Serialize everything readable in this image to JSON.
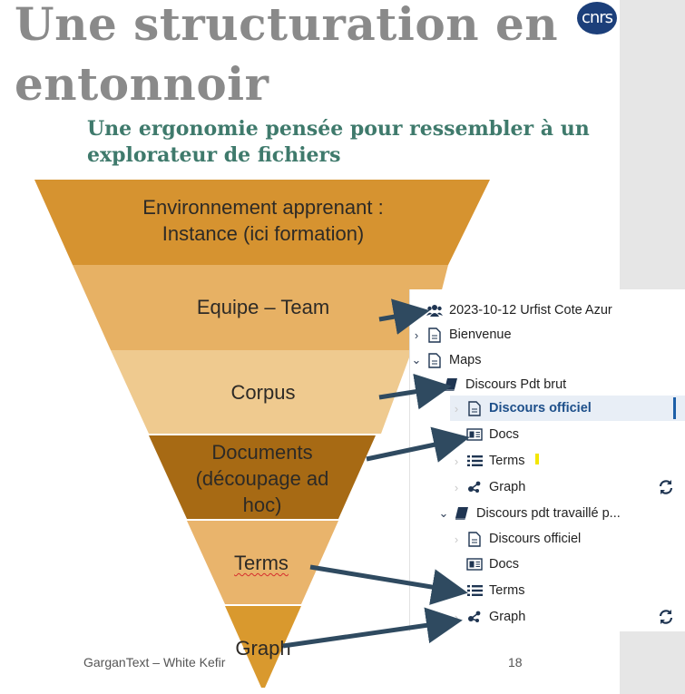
{
  "slide": {
    "title": "Une structuration en entonnoir",
    "subtitle": "Une ergonomie pensée pour ressembler à un explorateur de fichiers",
    "logo_text": "cnrs",
    "footer_left": "GarganText – White Kefir",
    "page_number": "18"
  },
  "funnel": {
    "levels": [
      {
        "label": "Environnement apprenant : Instance (ici formation)",
        "color": "#d69330"
      },
      {
        "label": "Equipe – Team",
        "color": "#e7b164"
      },
      {
        "label": "Corpus",
        "color": "#efca8f"
      },
      {
        "label": "Documents (découpage ad hoc)",
        "color": "#a76a14"
      },
      {
        "label": "Terms",
        "color": "#e9b46c"
      },
      {
        "label": "Graph",
        "color": "#d9992e"
      }
    ]
  },
  "tree": {
    "items": [
      {
        "label": "2023-10-12 Urfist Cote Azur",
        "icon": "users-icon"
      },
      {
        "label": "Bienvenue",
        "icon": "document-icon"
      },
      {
        "label": "Maps",
        "icon": "document-icon"
      },
      {
        "label": "Discours Pdt brut",
        "icon": "book-icon"
      },
      {
        "label": "Discours officiel",
        "icon": "document-icon",
        "selected": true
      },
      {
        "label": "Docs",
        "icon": "docs-grid-icon"
      },
      {
        "label": "Terms",
        "icon": "list-icon"
      },
      {
        "label": "Graph",
        "icon": "graph-icon"
      },
      {
        "label": "Discours pdt travaillé p...",
        "icon": "book-icon"
      },
      {
        "label": "Discours officiel",
        "icon": "document-icon"
      },
      {
        "label": "Docs",
        "icon": "docs-grid-icon"
      },
      {
        "label": "Terms",
        "icon": "list-icon"
      },
      {
        "label": "Graph",
        "icon": "graph-icon"
      }
    ]
  },
  "colors": {
    "title_gray": "#8a8a8a",
    "subtitle_green": "#3f7a6c",
    "arrow": "#2f4a60",
    "tree_selected_bg": "#e8eef6",
    "tree_selected_text": "#1d4f8a"
  }
}
